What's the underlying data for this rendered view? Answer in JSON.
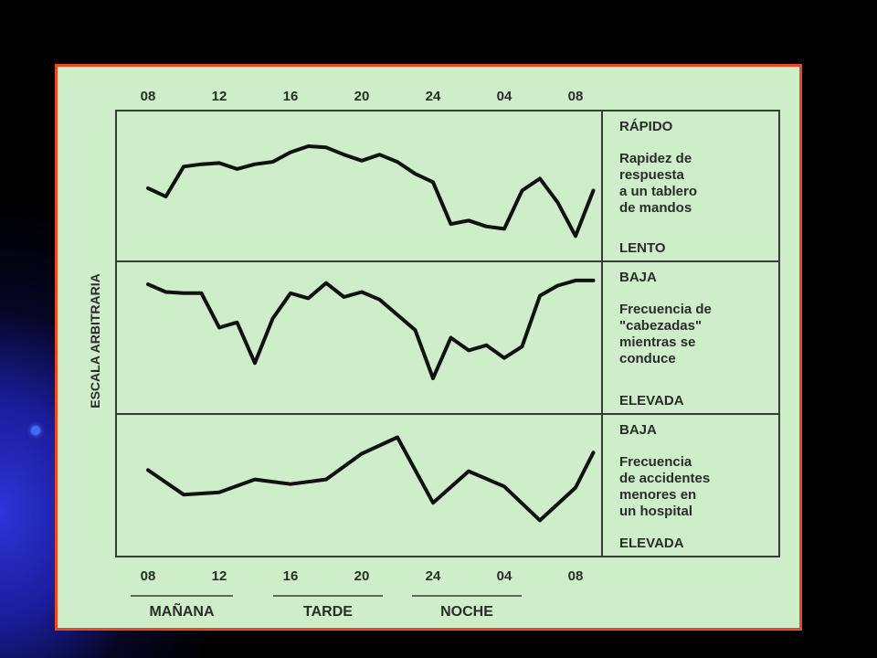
{
  "chart_data": {
    "type": "line",
    "ylabel": "ESCALA ARBITRARIA",
    "x_ticks": [
      "08",
      "12",
      "16",
      "20",
      "24",
      "04",
      "08"
    ],
    "periods": [
      "MAÑANA",
      "TARDE",
      "NOCHE"
    ],
    "panels": [
      {
        "top_label": "RÁPIDO",
        "description": [
          "Rapidez de",
          "respuesta",
          "a un tablero",
          "de mandos"
        ],
        "bottom_label": "LENTO",
        "ylim": [
          0,
          100
        ],
        "x": [
          8,
          9,
          10,
          11,
          12,
          13,
          14,
          15,
          16,
          17,
          18,
          19,
          20,
          21,
          22,
          23,
          24,
          25,
          26,
          27,
          28,
          29,
          30,
          31,
          32,
          33
        ],
        "values": [
          52,
          45,
          70,
          72,
          73,
          68,
          72,
          74,
          82,
          87,
          86,
          80,
          75,
          80,
          74,
          64,
          57,
          22,
          25,
          20,
          18,
          50,
          60,
          40,
          12,
          50
        ]
      },
      {
        "top_label": "BAJA",
        "description": [
          "Frecuencia de",
          "\"cabezadas\"",
          "mientras se",
          "conduce"
        ],
        "bottom_label": "ELEVADA",
        "ylim": [
          0,
          100
        ],
        "x": [
          8,
          9,
          10,
          11,
          12,
          13,
          14,
          15,
          16,
          17,
          18,
          19,
          20,
          21,
          22,
          23,
          24,
          25,
          26,
          27,
          28,
          29,
          30,
          31,
          32,
          33
        ],
        "values": [
          92,
          86,
          85,
          85,
          58,
          62,
          30,
          65,
          85,
          81,
          93,
          82,
          86,
          80,
          68,
          56,
          18,
          50,
          40,
          44,
          34,
          43,
          83,
          91,
          95,
          95
        ]
      },
      {
        "top_label": "BAJA",
        "description": [
          "Frecuencia",
          "de accidentes",
          "menores en",
          "un hospital"
        ],
        "bottom_label": "ELEVADA",
        "ylim": [
          0,
          100
        ],
        "x": [
          8,
          10,
          12,
          14,
          16,
          18,
          20,
          22,
          24,
          26,
          28,
          30,
          32,
          33
        ],
        "values": [
          63,
          42,
          44,
          55,
          51,
          55,
          77,
          91,
          35,
          62,
          49,
          20,
          48,
          78
        ]
      }
    ]
  }
}
